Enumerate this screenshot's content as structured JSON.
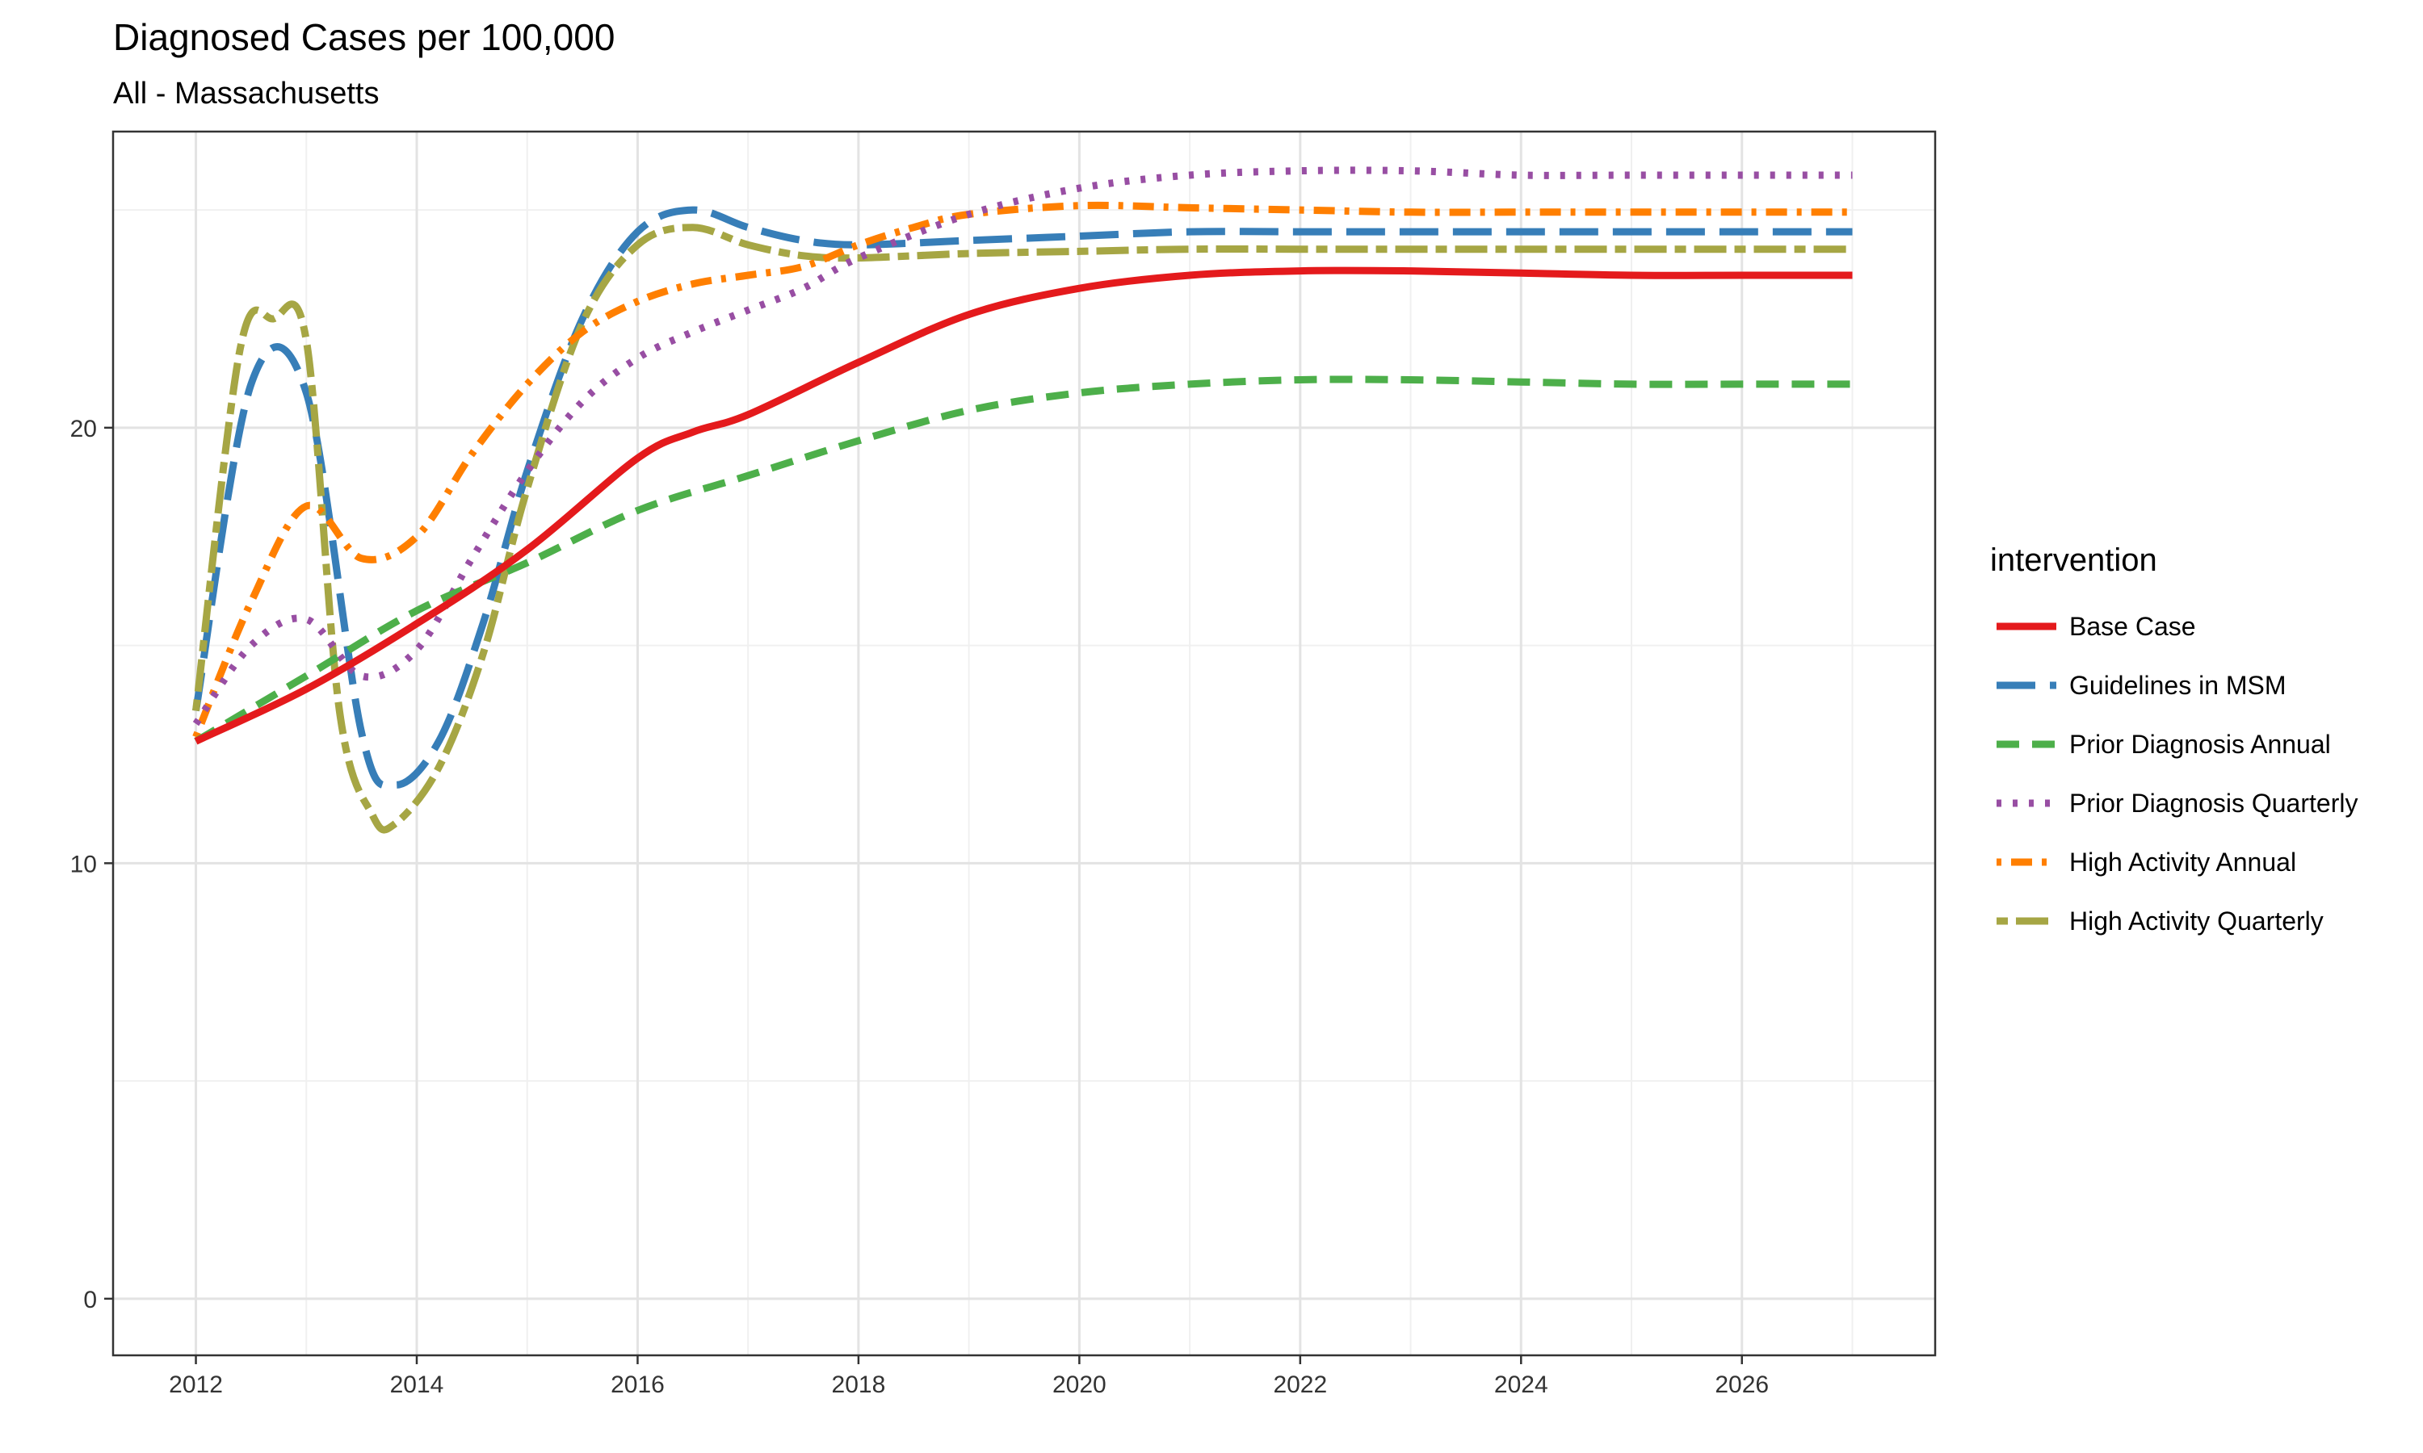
{
  "chart_data": {
    "type": "line",
    "title": "Diagnosed Cases per 100,000",
    "subtitle": "All - Massachusetts",
    "xlabel": "",
    "ylabel": "",
    "xlim": [
      2011.25,
      2027.75
    ],
    "ylim": [
      -1.3,
      26.8
    ],
    "x_ticks": [
      2012,
      2014,
      2016,
      2018,
      2020,
      2022,
      2024,
      2026
    ],
    "y_ticks": [
      0,
      10,
      20
    ],
    "grid": true,
    "legend": {
      "title": "intervention",
      "placement": "right"
    },
    "series": [
      {
        "name": "Base Case",
        "color": "#E41A1C",
        "dash": "solid",
        "x": [
          2012,
          2013,
          2014,
          2015,
          2016,
          2016.5,
          2017,
          2018,
          2019,
          2020,
          2021,
          2022,
          2023,
          2024,
          2025,
          2026,
          2027
        ],
        "y": [
          12.8,
          14.0,
          15.5,
          17.2,
          19.3,
          19.9,
          20.3,
          21.5,
          22.6,
          23.2,
          23.5,
          23.6,
          23.6,
          23.55,
          23.5,
          23.5,
          23.5
        ]
      },
      {
        "name": "Guidelines in MSM",
        "color": "#377EB8",
        "dash": "longdash",
        "x": [
          2012,
          2012.5,
          2013,
          2013.5,
          2013.8,
          2014.2,
          2014.6,
          2015,
          2015.5,
          2016,
          2016.5,
          2017,
          2017.5,
          2018,
          2019,
          2020,
          2021,
          2022,
          2023,
          2024,
          2025,
          2026,
          2027
        ],
        "y": [
          13.5,
          21.0,
          20.8,
          13.0,
          11.8,
          12.8,
          15.5,
          19.0,
          22.5,
          24.5,
          25.0,
          24.6,
          24.3,
          24.2,
          24.3,
          24.4,
          24.5,
          24.5,
          24.5,
          24.5,
          24.5,
          24.5,
          24.5
        ]
      },
      {
        "name": "Prior Diagnosis Annual",
        "color": "#4DAF4A",
        "dash": "dashed",
        "x": [
          2012,
          2013,
          2014,
          2015,
          2016,
          2017,
          2018,
          2019,
          2020,
          2021,
          2022,
          2023,
          2024,
          2025,
          2026,
          2027
        ],
        "y": [
          12.8,
          14.3,
          15.8,
          16.9,
          18.1,
          18.9,
          19.7,
          20.4,
          20.8,
          21.0,
          21.1,
          21.1,
          21.05,
          21.0,
          21.0,
          21.0
        ]
      },
      {
        "name": "Prior Diagnosis Quarterly",
        "color": "#984EA3",
        "dash": "dotted",
        "x": [
          2012,
          2012.5,
          2013,
          2013.5,
          2014,
          2014.5,
          2015,
          2015.5,
          2016,
          2016.5,
          2017,
          2017.5,
          2018,
          2019,
          2020,
          2021,
          2022,
          2023,
          2024,
          2025,
          2026,
          2027
        ],
        "y": [
          13.2,
          15.0,
          15.6,
          14.3,
          14.9,
          17.0,
          19.0,
          20.6,
          21.6,
          22.2,
          22.7,
          23.2,
          23.9,
          24.9,
          25.5,
          25.8,
          25.9,
          25.9,
          25.8,
          25.8,
          25.8,
          25.8
        ]
      },
      {
        "name": "High Activity Annual",
        "color": "#FF7F00",
        "dash": "dashdot",
        "x": [
          2012,
          2012.5,
          2013,
          2013.5,
          2014,
          2014.5,
          2015,
          2015.5,
          2016,
          2016.5,
          2017,
          2017.5,
          2018,
          2018.5,
          2019,
          2020,
          2021,
          2022,
          2023,
          2024,
          2025,
          2026,
          2027
        ],
        "y": [
          12.9,
          16.0,
          18.2,
          17.0,
          17.5,
          19.4,
          21.0,
          22.2,
          22.9,
          23.3,
          23.5,
          23.7,
          24.2,
          24.6,
          24.9,
          25.1,
          25.05,
          25.0,
          24.95,
          24.95,
          24.95,
          24.95,
          24.95
        ]
      },
      {
        "name": "High Activity Quarterly",
        "color": "#A6A644",
        "dash": "twodash",
        "x": [
          2012,
          2012.4,
          2012.7,
          2013,
          2013.3,
          2013.6,
          2013.8,
          2014.2,
          2014.6,
          2015,
          2015.5,
          2016,
          2016.5,
          2017,
          2017.5,
          2018,
          2019,
          2020,
          2021,
          2022,
          2023,
          2024,
          2025,
          2026,
          2027
        ],
        "y": [
          13.5,
          21.8,
          22.5,
          22.0,
          13.5,
          11.1,
          10.9,
          12.2,
          14.8,
          18.6,
          22.4,
          24.2,
          24.6,
          24.2,
          23.95,
          23.9,
          24.0,
          24.05,
          24.1,
          24.1,
          24.1,
          24.1,
          24.1,
          24.1,
          24.1
        ]
      }
    ]
  }
}
